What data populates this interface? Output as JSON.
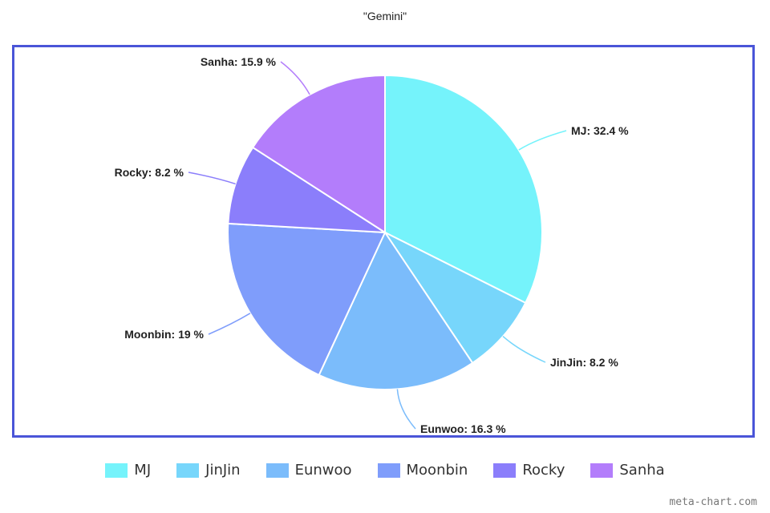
{
  "chart_data": {
    "type": "pie",
    "title": "\"Gemini\"",
    "slices": [
      {
        "label": "MJ",
        "value": 32.4,
        "display": "MJ: 32.4 %",
        "color": "#75f3fb"
      },
      {
        "label": "JinJin",
        "value": 8.2,
        "display": "JinJin: 8.2 %",
        "color": "#77d6fb"
      },
      {
        "label": "Eunwoo",
        "value": 16.3,
        "display": "Eunwoo: 16.3 %",
        "color": "#7bbcfb"
      },
      {
        "label": "Moonbin",
        "value": 19,
        "display": "Moonbin: 19 %",
        "color": "#7f9dfb"
      },
      {
        "label": "Rocky",
        "value": 8.2,
        "display": "Rocky: 8.2 %",
        "color": "#8b7efb"
      },
      {
        "label": "Sanha",
        "value": 15.9,
        "display": "Sanha: 15.9 %",
        "color": "#b37dfb"
      }
    ],
    "legend_position": "bottom"
  },
  "frame_color": "#4a55d8",
  "watermark": "meta-chart.com"
}
